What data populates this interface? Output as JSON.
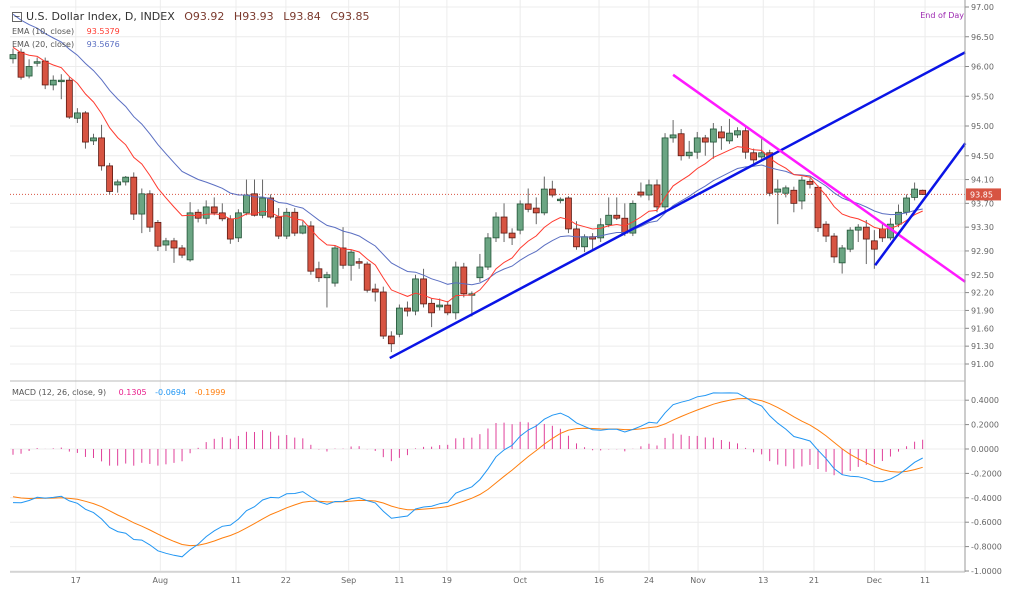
{
  "header": {
    "symbol": "U.S. Dollar Index, D, INDEX",
    "open": "O93.92",
    "high": "H93.93",
    "low": "L93.84",
    "close": "C93.85",
    "ema10_label": "EMA (10, close)",
    "ema10_value": "93.5379",
    "ema20_label": "EMA (20, close)",
    "ema20_value": "93.5676",
    "macd_label": "MACD (12, 26, close, 9)",
    "macd_hist": "0.1305",
    "macd_value": "-0.0694",
    "macd_signal": "-0.1999",
    "session": "End of Day"
  },
  "colors": {
    "up": "#6ba583",
    "up_border": "#225437",
    "down": "#d75442",
    "down_border": "#5b1a13",
    "ema10": "#ff3b30",
    "ema20": "#5b6fc2",
    "trend_blue": "#0a14e6",
    "trend_pink": "#ff1aff",
    "macd": "#2196f3",
    "signal": "#ff7f0e",
    "hist": "#e0409a",
    "last": "#d75442"
  },
  "last_price": "93.85",
  "chart_data": {
    "type": "candlestick",
    "price_axis_ticks": [
      "97.00",
      "96.50",
      "96.00",
      "95.50",
      "95.00",
      "94.50",
      "94.10",
      "93.70",
      "93.30",
      "92.90",
      "92.50",
      "92.20",
      "91.90",
      "91.60",
      "91.30",
      "91.00"
    ],
    "macd_axis_ticks": [
      "0.4000",
      "0.2000",
      "0.0000",
      "-0.2000",
      "-0.4000",
      "-0.6000",
      "-0.8000",
      "-1.0000"
    ],
    "x_labels": [
      {
        "label": "17",
        "index": 7.8
      },
      {
        "label": "Aug",
        "index": 18.3
      },
      {
        "label": "11",
        "index": 27.7
      },
      {
        "label": "22",
        "index": 33.9
      },
      {
        "label": "Sep",
        "index": 41.7
      },
      {
        "label": "11",
        "index": 48
      },
      {
        "label": "19",
        "index": 53.9
      },
      {
        "label": "Oct",
        "index": 63
      },
      {
        "label": "16",
        "index": 72.8
      },
      {
        "label": "24",
        "index": 79
      },
      {
        "label": "Nov",
        "index": 85.1
      },
      {
        "label": "13",
        "index": 93.2
      },
      {
        "label": "21",
        "index": 99.5
      },
      {
        "label": "Dec",
        "index": 107
      },
      {
        "label": "11",
        "index": 113.3
      }
    ],
    "ohlc": [
      [
        96.13,
        96.3,
        96.05,
        96.2
      ],
      [
        96.24,
        96.3,
        95.78,
        95.82
      ],
      [
        95.84,
        96.12,
        95.8,
        96.0
      ],
      [
        96.06,
        96.15,
        96.0,
        96.08
      ],
      [
        96.09,
        96.15,
        95.62,
        95.69
      ],
      [
        95.69,
        95.85,
        95.6,
        95.77
      ],
      [
        95.77,
        95.87,
        95.45,
        95.77
      ],
      [
        95.77,
        95.82,
        95.12,
        95.15
      ],
      [
        95.13,
        95.3,
        95.05,
        95.22
      ],
      [
        95.22,
        95.25,
        94.62,
        94.73
      ],
      [
        94.75,
        94.87,
        94.68,
        94.8
      ],
      [
        94.8,
        95.02,
        94.25,
        94.33
      ],
      [
        94.33,
        94.38,
        93.85,
        93.9
      ],
      [
        94.01,
        94.1,
        93.88,
        94.06
      ],
      [
        94.06,
        94.16,
        94.0,
        94.14
      ],
      [
        94.14,
        94.22,
        93.42,
        93.52
      ],
      [
        93.52,
        93.95,
        93.2,
        93.86
      ],
      [
        93.86,
        93.92,
        93.22,
        93.3
      ],
      [
        93.38,
        93.42,
        92.9,
        92.98
      ],
      [
        93.0,
        93.12,
        92.9,
        93.07
      ],
      [
        93.07,
        93.12,
        92.7,
        92.95
      ],
      [
        92.95,
        93.0,
        92.78,
        92.83
      ],
      [
        92.75,
        93.72,
        92.72,
        93.54
      ],
      [
        93.55,
        93.6,
        93.38,
        93.45
      ],
      [
        93.45,
        93.75,
        93.35,
        93.64
      ],
      [
        93.64,
        93.8,
        93.5,
        93.54
      ],
      [
        93.54,
        93.7,
        93.4,
        93.44
      ],
      [
        93.44,
        93.5,
        93.02,
        93.1
      ],
      [
        93.12,
        93.6,
        93.05,
        93.54
      ],
      [
        93.54,
        94.1,
        93.5,
        93.84
      ],
      [
        93.86,
        94.1,
        93.48,
        93.5
      ],
      [
        93.5,
        94.1,
        93.45,
        93.79
      ],
      [
        93.79,
        93.85,
        93.44,
        93.47
      ],
      [
        93.47,
        93.62,
        93.1,
        93.15
      ],
      [
        93.15,
        93.62,
        93.1,
        93.55
      ],
      [
        93.55,
        93.62,
        93.15,
        93.2
      ],
      [
        93.2,
        93.4,
        93.18,
        93.32
      ],
      [
        93.32,
        93.4,
        92.5,
        92.56
      ],
      [
        92.6,
        92.72,
        92.38,
        92.45
      ],
      [
        92.45,
        92.55,
        91.95,
        92.5
      ],
      [
        92.36,
        93.0,
        92.3,
        92.95
      ],
      [
        92.95,
        93.3,
        92.6,
        92.66
      ],
      [
        92.66,
        92.92,
        92.4,
        92.88
      ],
      [
        92.72,
        92.78,
        92.6,
        92.7
      ],
      [
        92.68,
        92.72,
        92.2,
        92.24
      ],
      [
        92.26,
        92.35,
        92.05,
        92.21
      ],
      [
        92.21,
        92.3,
        91.42,
        91.47
      ],
      [
        91.47,
        91.55,
        91.2,
        91.34
      ],
      [
        91.5,
        92.0,
        91.45,
        91.94
      ],
      [
        91.94,
        92.05,
        91.8,
        91.89
      ],
      [
        91.89,
        92.5,
        91.82,
        92.43
      ],
      [
        92.43,
        92.6,
        91.95,
        92.01
      ],
      [
        92.02,
        92.1,
        91.62,
        91.86
      ],
      [
        91.96,
        92.1,
        91.9,
        91.99
      ],
      [
        91.99,
        92.06,
        91.82,
        91.86
      ],
      [
        91.86,
        92.72,
        91.75,
        92.63
      ],
      [
        92.63,
        92.7,
        92.12,
        92.18
      ],
      [
        92.18,
        92.22,
        91.8,
        92.18
      ],
      [
        92.45,
        92.85,
        92.38,
        92.63
      ],
      [
        92.63,
        93.2,
        92.58,
        93.12
      ],
      [
        93.12,
        93.55,
        93.05,
        93.47
      ],
      [
        93.47,
        93.7,
        93.05,
        93.2
      ],
      [
        93.2,
        93.28,
        93.0,
        93.12
      ],
      [
        93.25,
        93.75,
        93.18,
        93.69
      ],
      [
        93.69,
        93.95,
        93.55,
        93.6
      ],
      [
        93.62,
        93.8,
        93.35,
        93.54
      ],
      [
        93.54,
        94.15,
        93.5,
        93.94
      ],
      [
        93.94,
        94.08,
        93.8,
        93.84
      ],
      [
        93.77,
        93.8,
        93.7,
        93.77
      ],
      [
        93.79,
        93.82,
        93.2,
        93.27
      ],
      [
        93.27,
        93.4,
        92.92,
        92.97
      ],
      [
        92.97,
        93.18,
        92.88,
        93.14
      ],
      [
        93.14,
        93.2,
        92.9,
        93.1
      ],
      [
        93.12,
        93.45,
        93.05,
        93.34
      ],
      [
        93.34,
        93.8,
        93.3,
        93.5
      ],
      [
        93.5,
        93.8,
        93.42,
        93.45
      ],
      [
        93.45,
        93.7,
        93.15,
        93.2
      ],
      [
        93.2,
        93.75,
        93.15,
        93.7
      ],
      [
        93.89,
        94.05,
        93.8,
        93.84
      ],
      [
        93.84,
        94.1,
        93.75,
        94.01
      ],
      [
        94.01,
        94.1,
        93.55,
        93.64
      ],
      [
        93.64,
        94.88,
        93.55,
        94.8
      ],
      [
        94.8,
        95.1,
        94.72,
        94.85
      ],
      [
        94.87,
        94.95,
        94.42,
        94.5
      ],
      [
        94.5,
        94.75,
        94.45,
        94.56
      ],
      [
        94.56,
        94.9,
        94.45,
        94.8
      ],
      [
        94.8,
        94.85,
        94.5,
        94.73
      ],
      [
        94.73,
        95.05,
        94.45,
        94.95
      ],
      [
        94.9,
        95.0,
        94.6,
        94.8
      ],
      [
        94.75,
        95.12,
        94.7,
        94.88
      ],
      [
        94.85,
        94.98,
        94.8,
        94.92
      ],
      [
        94.92,
        94.98,
        94.45,
        94.56
      ],
      [
        94.55,
        94.62,
        94.35,
        94.43
      ],
      [
        94.48,
        94.78,
        94.42,
        94.55
      ],
      [
        94.55,
        94.6,
        93.82,
        93.87
      ],
      [
        93.89,
        94.1,
        93.35,
        93.94
      ],
      [
        93.87,
        94.0,
        93.8,
        93.96
      ],
      [
        93.92,
        93.98,
        93.55,
        93.7
      ],
      [
        93.74,
        94.15,
        93.6,
        94.09
      ],
      [
        94.07,
        94.12,
        93.95,
        94.02
      ],
      [
        93.97,
        94.0,
        93.22,
        93.29
      ],
      [
        93.35,
        93.4,
        93.05,
        93.15
      ],
      [
        93.15,
        93.2,
        92.7,
        92.8
      ],
      [
        92.7,
        93.0,
        92.52,
        92.95
      ],
      [
        92.93,
        93.3,
        92.88,
        93.25
      ],
      [
        93.25,
        93.35,
        93.05,
        93.3
      ],
      [
        93.3,
        93.42,
        92.68,
        93.1
      ],
      [
        93.07,
        93.25,
        92.6,
        92.93
      ],
      [
        93.27,
        93.35,
        93.05,
        93.12
      ],
      [
        93.12,
        93.45,
        93.08,
        93.35
      ],
      [
        93.35,
        93.68,
        93.3,
        93.55
      ],
      [
        93.55,
        93.85,
        93.5,
        93.79
      ],
      [
        93.8,
        94.05,
        93.75,
        93.94
      ],
      [
        93.92,
        93.93,
        93.84,
        93.85
      ]
    ],
    "ema10_start": 96.35,
    "ema20_start": 96.95,
    "macd_seed": {
      "ema12": 96.25,
      "ema26": 96.72,
      "signal": -0.38
    },
    "trendlines": [
      {
        "name": "support-trendline",
        "color": "trend_blue",
        "from": {
          "index": 46.8,
          "price": 91.1
        },
        "to": {
          "index": 118.3,
          "price": 96.24
        }
      },
      {
        "name": "resistance-trendline",
        "color": "trend_pink",
        "from": {
          "index": 82,
          "price": 95.86
        },
        "to": {
          "index": 118.3,
          "price": 92.38
        }
      },
      {
        "name": "short-term-trendline",
        "color": "trend_blue",
        "from": {
          "index": 107.1,
          "price": 92.66
        },
        "to": {
          "index": 118.3,
          "price": 94.71
        }
      }
    ]
  }
}
